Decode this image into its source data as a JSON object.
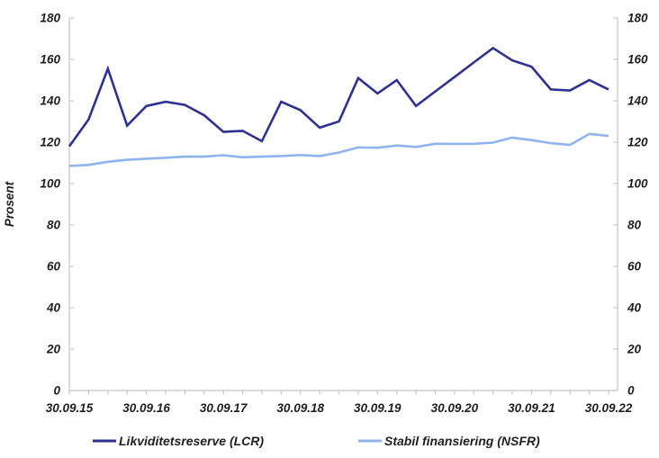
{
  "chart_data": {
    "type": "line",
    "ylabel": "Prosent",
    "ylim": [
      0,
      180
    ],
    "y_tick_step": 20,
    "y_ticks": [
      0,
      20,
      40,
      60,
      80,
      100,
      120,
      140,
      160,
      180
    ],
    "x_tick_labels": [
      "30.09.15",
      "30.09.16",
      "30.09.17",
      "30.09.18",
      "30.09.19",
      "30.09.20",
      "30.09.21",
      "30.09.22"
    ],
    "points_per_year": 4,
    "grid": false,
    "legend_position": "bottom",
    "right_axis_mirror": true,
    "series": [
      {
        "name": "Likviditetsreserve (LCR)",
        "color": "#2e3192",
        "values": [
          118,
          131,
          155.5,
          128,
          137.5,
          139.5,
          138,
          133,
          125,
          125.5,
          120.5,
          139.5,
          135.5,
          127,
          130,
          151,
          143.5,
          150,
          137.5,
          144.5,
          151.5,
          158.5,
          165.5,
          159.5,
          156.5,
          145.5,
          145,
          150,
          145.5
        ]
      },
      {
        "name": "Stabil finansiering (NSFR)",
        "color": "#8fb4ee",
        "values": [
          108.5,
          109,
          110.5,
          111.5,
          112,
          112.5,
          113,
          113,
          113.7,
          112.7,
          113,
          113.3,
          113.8,
          113.3,
          115,
          117.5,
          117.3,
          118.4,
          117.7,
          119.2,
          119.2,
          119.2,
          119.8,
          122.2,
          121,
          119.5,
          118.7,
          124,
          123
        ]
      }
    ],
    "colors": {
      "axis": "#c6c6c6",
      "label_text": "#1f1f1f"
    }
  }
}
